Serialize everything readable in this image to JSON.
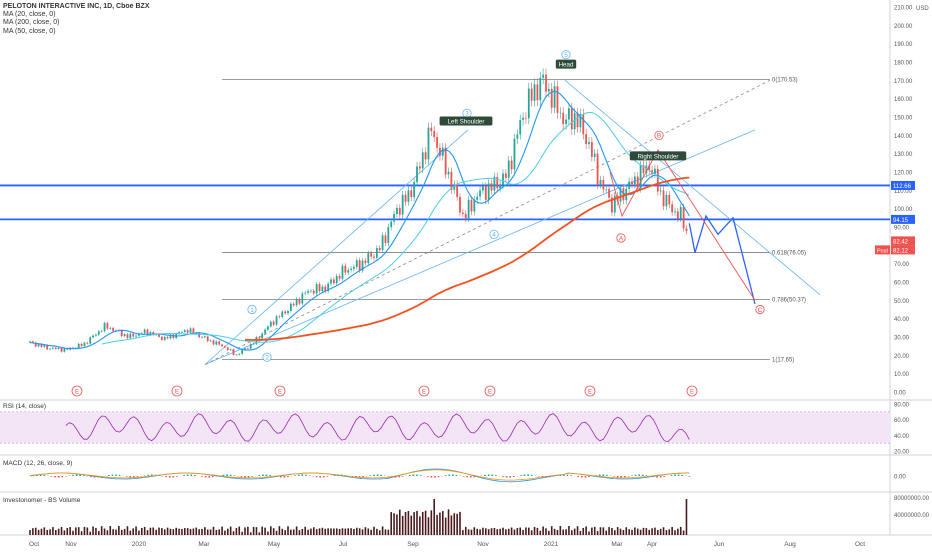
{
  "header": {
    "symbol_line": "PELOTON INTERACTIVE INC, 1D, Cboe BZX",
    "ma_lines": [
      "MA (20, close, 0)",
      "MA (200, close, 0)",
      "MA (50, close, 0)"
    ],
    "currency": "USD"
  },
  "colors": {
    "background": "#ffffff",
    "candle_up": "#26a69a",
    "candle_down": "#ef5350",
    "ma20": "#2196f3",
    "ma50": "#4dd0e1",
    "ma200": "#f4511e",
    "level_line": "#2962ff",
    "fib_line": "#787b86",
    "wave_blue": "#64b5f6",
    "wave_red": "#ef5350",
    "rsi_line": "#9c27b0",
    "rsi_band": "#f3e5f5",
    "macd_line": "#2196f3",
    "signal_line": "#ff9800",
    "volume": "#4a1a1a",
    "price_badge_blue": "#2962ff",
    "price_badge_red": "#ef5350",
    "earnings_marker": "#ef5350",
    "pattern_label_bg": "#2e4a38"
  },
  "chart_data": {
    "type": "candlestick",
    "title": "PELOTON INTERACTIVE INC, 1D, Cboe BZX",
    "price_axis": {
      "ylim": [
        0,
        210
      ],
      "ticks": [
        "210.00",
        "200.00",
        "190.00",
        "180.00",
        "170.00",
        "160.00",
        "150.00",
        "140.00",
        "130.00",
        "120.00",
        "110.00",
        "100.00",
        "90.00",
        "80.00",
        "70.00",
        "60.00",
        "50.00",
        "40.00",
        "30.00",
        "20.00",
        "10.00",
        "0.00"
      ],
      "badges": [
        {
          "label": "112.66",
          "value": 112.66,
          "color": "blue"
        },
        {
          "label": "94.15",
          "value": 94.15,
          "color": "blue"
        },
        {
          "label": "82.42",
          "value": 82.42,
          "color": "red"
        },
        {
          "label": "82.12",
          "value": 82.12,
          "color": "red",
          "tag": "Post"
        }
      ]
    },
    "time_axis": [
      "Oct",
      "Nov",
      "2020",
      "Mar",
      "May",
      "Jul",
      "Sep",
      "Nov",
      "2021",
      "Mar",
      "Apr",
      "Jun",
      "Aug",
      "Oct"
    ],
    "close_series": [
      {
        "t": 0,
        "v": 27
      },
      {
        "t": 10,
        "v": 24
      },
      {
        "t": 20,
        "v": 23
      },
      {
        "t": 30,
        "v": 26
      },
      {
        "t": 42,
        "v": 36
      },
      {
        "t": 55,
        "v": 30
      },
      {
        "t": 65,
        "v": 33
      },
      {
        "t": 75,
        "v": 29
      },
      {
        "t": 88,
        "v": 34
      },
      {
        "t": 100,
        "v": 28
      },
      {
        "t": 108,
        "v": 25
      },
      {
        "t": 115,
        "v": 20
      },
      {
        "t": 125,
        "v": 27
      },
      {
        "t": 135,
        "v": 38
      },
      {
        "t": 145,
        "v": 46
      },
      {
        "t": 155,
        "v": 55
      },
      {
        "t": 165,
        "v": 57
      },
      {
        "t": 175,
        "v": 66
      },
      {
        "t": 185,
        "v": 70
      },
      {
        "t": 195,
        "v": 78
      },
      {
        "t": 205,
        "v": 100
      },
      {
        "t": 212,
        "v": 108
      },
      {
        "t": 218,
        "v": 125
      },
      {
        "t": 224,
        "v": 143
      },
      {
        "t": 230,
        "v": 128
      },
      {
        "t": 236,
        "v": 112
      },
      {
        "t": 242,
        "v": 95
      },
      {
        "t": 250,
        "v": 108
      },
      {
        "t": 258,
        "v": 112
      },
      {
        "t": 266,
        "v": 118
      },
      {
        "t": 274,
        "v": 148
      },
      {
        "t": 280,
        "v": 162
      },
      {
        "t": 286,
        "v": 170
      },
      {
        "t": 292,
        "v": 160
      },
      {
        "t": 298,
        "v": 148
      },
      {
        "t": 305,
        "v": 150
      },
      {
        "t": 312,
        "v": 135
      },
      {
        "t": 318,
        "v": 115
      },
      {
        "t": 325,
        "v": 102
      },
      {
        "t": 332,
        "v": 110
      },
      {
        "t": 340,
        "v": 118
      },
      {
        "t": 346,
        "v": 124
      },
      {
        "t": 352,
        "v": 108
      },
      {
        "t": 358,
        "v": 100
      },
      {
        "t": 364,
        "v": 95
      },
      {
        "t": 368,
        "v": 82
      }
    ],
    "fib_levels": [
      {
        "label": "0(170.53)",
        "value": 170.53
      },
      {
        "label": "0.618(76.05)",
        "value": 76.05
      },
      {
        "label": "0.786(50.37)",
        "value": 50.37
      },
      {
        "label": "1(17.65)",
        "value": 17.65
      }
    ],
    "horizontal_levels": [
      112.66,
      94.15
    ],
    "pattern_labels": [
      "Left Shoulder",
      "Head",
      "Right Shoulder"
    ],
    "wave_labels_blue": [
      "1",
      "2",
      "3",
      "4",
      "5"
    ],
    "wave_labels_red": [
      "A",
      "B",
      "C"
    ],
    "earnings_marker": "E",
    "rsi": {
      "label": "RSI (14, close)",
      "ylim": [
        20,
        80
      ],
      "ticks": [
        "80.00",
        "60.00",
        "40.00",
        "20.00"
      ],
      "band": [
        30,
        70
      ]
    },
    "macd": {
      "label": "MACD (12, 26, close, 9)",
      "ticks": [
        "0.00"
      ]
    },
    "volume": {
      "label": "Investonomer - BS Volume",
      "ticks": [
        "80000000.00",
        "40000000.00"
      ]
    }
  }
}
